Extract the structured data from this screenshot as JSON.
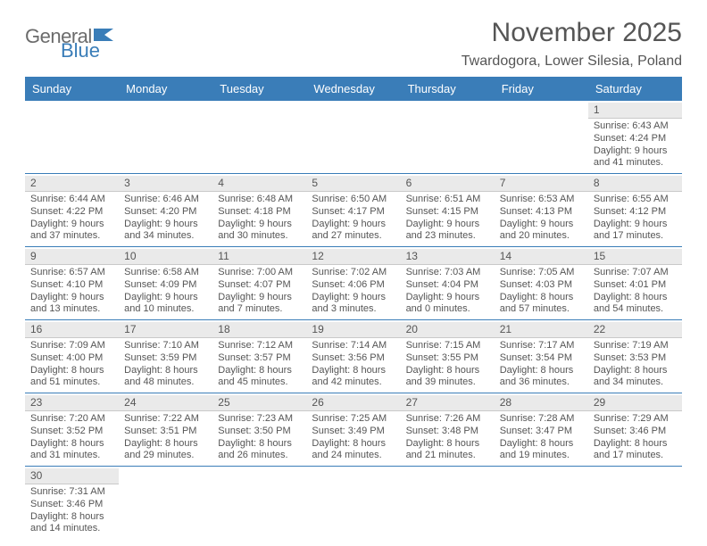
{
  "logo": {
    "part1": "General",
    "part2": "Blue"
  },
  "title": "November 2025",
  "location": "Twardogora, Lower Silesia, Poland",
  "colors": {
    "accent": "#3a7db8",
    "text": "#555555",
    "daynum_bg": "#eaeaea",
    "daynum_border": "#c9c9c9"
  },
  "weekdays": [
    "Sunday",
    "Monday",
    "Tuesday",
    "Wednesday",
    "Thursday",
    "Friday",
    "Saturday"
  ],
  "grid": [
    [
      null,
      null,
      null,
      null,
      null,
      null,
      {
        "n": "1",
        "sr": "Sunrise: 6:43 AM",
        "ss": "Sunset: 4:24 PM",
        "d1": "Daylight: 9 hours",
        "d2": "and 41 minutes."
      }
    ],
    [
      {
        "n": "2",
        "sr": "Sunrise: 6:44 AM",
        "ss": "Sunset: 4:22 PM",
        "d1": "Daylight: 9 hours",
        "d2": "and 37 minutes."
      },
      {
        "n": "3",
        "sr": "Sunrise: 6:46 AM",
        "ss": "Sunset: 4:20 PM",
        "d1": "Daylight: 9 hours",
        "d2": "and 34 minutes."
      },
      {
        "n": "4",
        "sr": "Sunrise: 6:48 AM",
        "ss": "Sunset: 4:18 PM",
        "d1": "Daylight: 9 hours",
        "d2": "and 30 minutes."
      },
      {
        "n": "5",
        "sr": "Sunrise: 6:50 AM",
        "ss": "Sunset: 4:17 PM",
        "d1": "Daylight: 9 hours",
        "d2": "and 27 minutes."
      },
      {
        "n": "6",
        "sr": "Sunrise: 6:51 AM",
        "ss": "Sunset: 4:15 PM",
        "d1": "Daylight: 9 hours",
        "d2": "and 23 minutes."
      },
      {
        "n": "7",
        "sr": "Sunrise: 6:53 AM",
        "ss": "Sunset: 4:13 PM",
        "d1": "Daylight: 9 hours",
        "d2": "and 20 minutes."
      },
      {
        "n": "8",
        "sr": "Sunrise: 6:55 AM",
        "ss": "Sunset: 4:12 PM",
        "d1": "Daylight: 9 hours",
        "d2": "and 17 minutes."
      }
    ],
    [
      {
        "n": "9",
        "sr": "Sunrise: 6:57 AM",
        "ss": "Sunset: 4:10 PM",
        "d1": "Daylight: 9 hours",
        "d2": "and 13 minutes."
      },
      {
        "n": "10",
        "sr": "Sunrise: 6:58 AM",
        "ss": "Sunset: 4:09 PM",
        "d1": "Daylight: 9 hours",
        "d2": "and 10 minutes."
      },
      {
        "n": "11",
        "sr": "Sunrise: 7:00 AM",
        "ss": "Sunset: 4:07 PM",
        "d1": "Daylight: 9 hours",
        "d2": "and 7 minutes."
      },
      {
        "n": "12",
        "sr": "Sunrise: 7:02 AM",
        "ss": "Sunset: 4:06 PM",
        "d1": "Daylight: 9 hours",
        "d2": "and 3 minutes."
      },
      {
        "n": "13",
        "sr": "Sunrise: 7:03 AM",
        "ss": "Sunset: 4:04 PM",
        "d1": "Daylight: 9 hours",
        "d2": "and 0 minutes."
      },
      {
        "n": "14",
        "sr": "Sunrise: 7:05 AM",
        "ss": "Sunset: 4:03 PM",
        "d1": "Daylight: 8 hours",
        "d2": "and 57 minutes."
      },
      {
        "n": "15",
        "sr": "Sunrise: 7:07 AM",
        "ss": "Sunset: 4:01 PM",
        "d1": "Daylight: 8 hours",
        "d2": "and 54 minutes."
      }
    ],
    [
      {
        "n": "16",
        "sr": "Sunrise: 7:09 AM",
        "ss": "Sunset: 4:00 PM",
        "d1": "Daylight: 8 hours",
        "d2": "and 51 minutes."
      },
      {
        "n": "17",
        "sr": "Sunrise: 7:10 AM",
        "ss": "Sunset: 3:59 PM",
        "d1": "Daylight: 8 hours",
        "d2": "and 48 minutes."
      },
      {
        "n": "18",
        "sr": "Sunrise: 7:12 AM",
        "ss": "Sunset: 3:57 PM",
        "d1": "Daylight: 8 hours",
        "d2": "and 45 minutes."
      },
      {
        "n": "19",
        "sr": "Sunrise: 7:14 AM",
        "ss": "Sunset: 3:56 PM",
        "d1": "Daylight: 8 hours",
        "d2": "and 42 minutes."
      },
      {
        "n": "20",
        "sr": "Sunrise: 7:15 AM",
        "ss": "Sunset: 3:55 PM",
        "d1": "Daylight: 8 hours",
        "d2": "and 39 minutes."
      },
      {
        "n": "21",
        "sr": "Sunrise: 7:17 AM",
        "ss": "Sunset: 3:54 PM",
        "d1": "Daylight: 8 hours",
        "d2": "and 36 minutes."
      },
      {
        "n": "22",
        "sr": "Sunrise: 7:19 AM",
        "ss": "Sunset: 3:53 PM",
        "d1": "Daylight: 8 hours",
        "d2": "and 34 minutes."
      }
    ],
    [
      {
        "n": "23",
        "sr": "Sunrise: 7:20 AM",
        "ss": "Sunset: 3:52 PM",
        "d1": "Daylight: 8 hours",
        "d2": "and 31 minutes."
      },
      {
        "n": "24",
        "sr": "Sunrise: 7:22 AM",
        "ss": "Sunset: 3:51 PM",
        "d1": "Daylight: 8 hours",
        "d2": "and 29 minutes."
      },
      {
        "n": "25",
        "sr": "Sunrise: 7:23 AM",
        "ss": "Sunset: 3:50 PM",
        "d1": "Daylight: 8 hours",
        "d2": "and 26 minutes."
      },
      {
        "n": "26",
        "sr": "Sunrise: 7:25 AM",
        "ss": "Sunset: 3:49 PM",
        "d1": "Daylight: 8 hours",
        "d2": "and 24 minutes."
      },
      {
        "n": "27",
        "sr": "Sunrise: 7:26 AM",
        "ss": "Sunset: 3:48 PM",
        "d1": "Daylight: 8 hours",
        "d2": "and 21 minutes."
      },
      {
        "n": "28",
        "sr": "Sunrise: 7:28 AM",
        "ss": "Sunset: 3:47 PM",
        "d1": "Daylight: 8 hours",
        "d2": "and 19 minutes."
      },
      {
        "n": "29",
        "sr": "Sunrise: 7:29 AM",
        "ss": "Sunset: 3:46 PM",
        "d1": "Daylight: 8 hours",
        "d2": "and 17 minutes."
      }
    ],
    [
      {
        "n": "30",
        "sr": "Sunrise: 7:31 AM",
        "ss": "Sunset: 3:46 PM",
        "d1": "Daylight: 8 hours",
        "d2": "and 14 minutes."
      },
      null,
      null,
      null,
      null,
      null,
      null
    ]
  ]
}
